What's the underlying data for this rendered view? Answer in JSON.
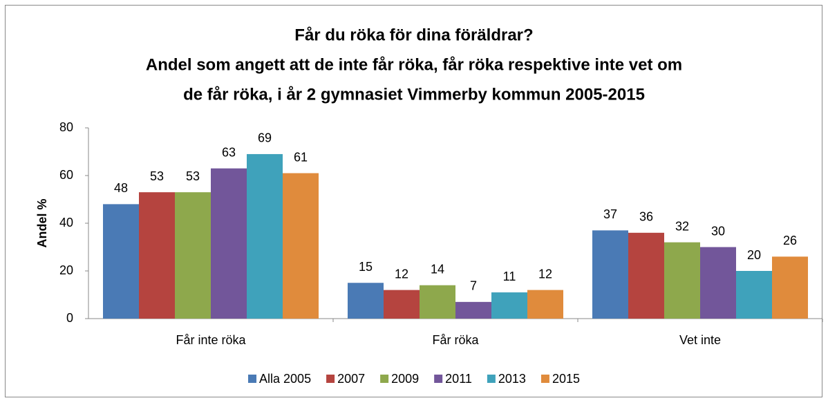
{
  "chart_data": {
    "type": "bar",
    "title": [
      "Får du röka för dina föräldrar?",
      "Andel som angett att de inte får röka, får röka respektive inte vet om",
      "de får röka, i år 2 gymnasiet Vimmerby kommun 2005-2015"
    ],
    "y_label": "Andel %",
    "categories": [
      "Får inte röka",
      "Får röka",
      "Vet inte"
    ],
    "series": [
      {
        "name": "Alla 2005",
        "color": "#4a7ab5",
        "values": [
          48,
          15,
          37
        ]
      },
      {
        "name": "2007",
        "color": "#b5443f",
        "values": [
          53,
          12,
          36
        ]
      },
      {
        "name": "2009",
        "color": "#8ea84c",
        "values": [
          53,
          14,
          32
        ]
      },
      {
        "name": "2011",
        "color": "#72569a",
        "values": [
          63,
          7,
          30
        ]
      },
      {
        "name": "2013",
        "color": "#3fa2bb",
        "values": [
          69,
          11,
          20
        ]
      },
      {
        "name": "2015",
        "color": "#e08b3c",
        "values": [
          61,
          12,
          26
        ]
      }
    ],
    "ylim": [
      0,
      80
    ],
    "yticks": [
      0,
      20,
      40,
      60,
      80
    ],
    "grid": false,
    "legend": "bottom"
  }
}
